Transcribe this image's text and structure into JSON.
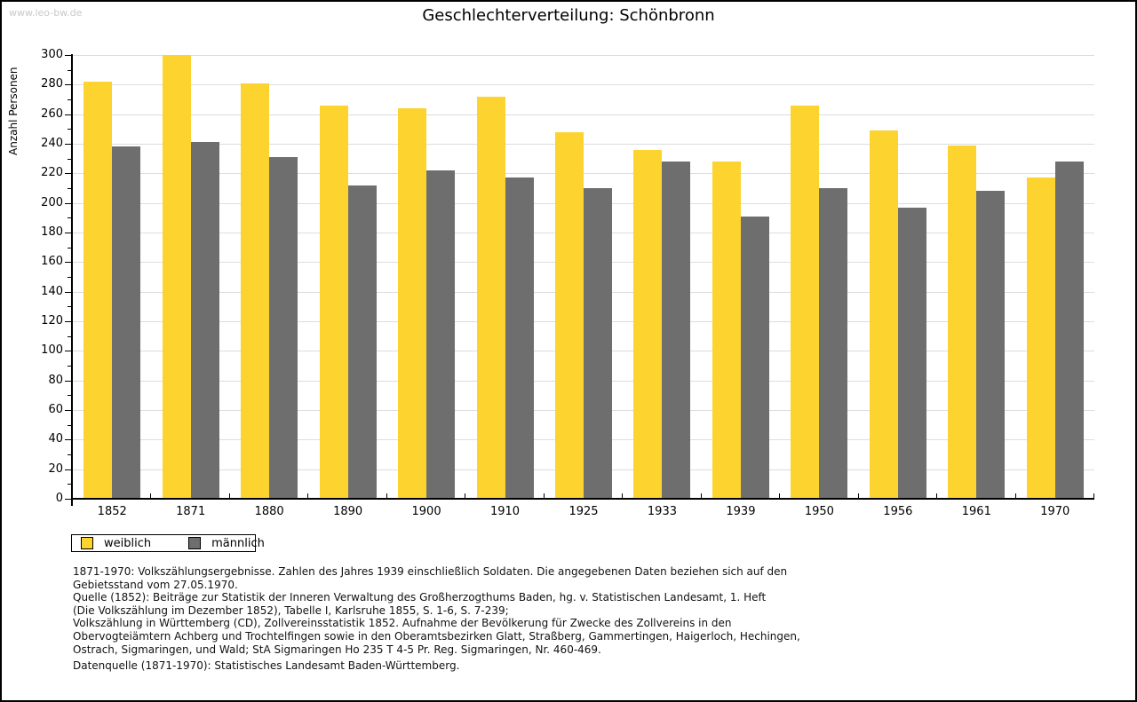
{
  "watermark": "www.leo-bw.de",
  "chart_data": {
    "type": "bar",
    "title": "Geschlechterverteilung: Schönbronn",
    "ylabel": "Anzahl Personen",
    "xlabel": "",
    "categories": [
      "1852",
      "1871",
      "1880",
      "1890",
      "1900",
      "1910",
      "1925",
      "1933",
      "1939",
      "1950",
      "1956",
      "1961",
      "1970"
    ],
    "series": [
      {
        "name": "weiblich",
        "color": "#fcd32f",
        "values": [
          282,
          300,
          281,
          266,
          264,
          272,
          248,
          236,
          228,
          266,
          249,
          239,
          217
        ]
      },
      {
        "name": "männlich",
        "color": "#6e6e6e",
        "values": [
          238,
          241,
          231,
          212,
          222,
          217,
          210,
          228,
          191,
          210,
          197,
          208,
          228
        ]
      }
    ],
    "ylim": [
      0,
      300
    ],
    "ytick_major": 20,
    "ytick_minor": 10,
    "grid": true,
    "legend_position": "below-left"
  },
  "colors": {
    "female_bar": "#fcd32f",
    "male_bar": "#6e6e6e",
    "gridline": "#dddddd",
    "axis": "#000000",
    "watermark_text": "#c9c9c9"
  },
  "footer": {
    "lines": [
      "1871-1970: Volkszählungsergebnisse. Zahlen des Jahres 1939 einschließlich Soldaten. Die angegebenen Daten beziehen sich auf den",
      "Gebietsstand vom 27.05.1970.",
      "Quelle (1852): Beiträge zur Statistik der Inneren Verwaltung des Großherzogthums Baden, hg. v. Statistischen Landesamt, 1. Heft",
      "(Die Volkszählung im Dezember 1852), Tabelle I, Karlsruhe 1855, S. 1-6, S. 7-239;",
      "Volkszählung in Württemberg (CD), Zollvereinsstatistik 1852. Aufnahme der Bevölkerung für Zwecke des Zollvereins in den",
      "Obervogteiämtern Achberg und Trochtelfingen sowie in den Oberamtsbezirken Glatt, Straßberg, Gammertingen, Haigerloch, Hechingen,",
      "Ostrach, Sigmaringen, und Wald; StA Sigmaringen Ho 235 T 4-5 Pr. Reg. Sigmaringen, Nr. 460-469."
    ],
    "datenquelle": "Datenquelle (1871-1970): Statistisches Landesamt Baden-Württemberg."
  }
}
